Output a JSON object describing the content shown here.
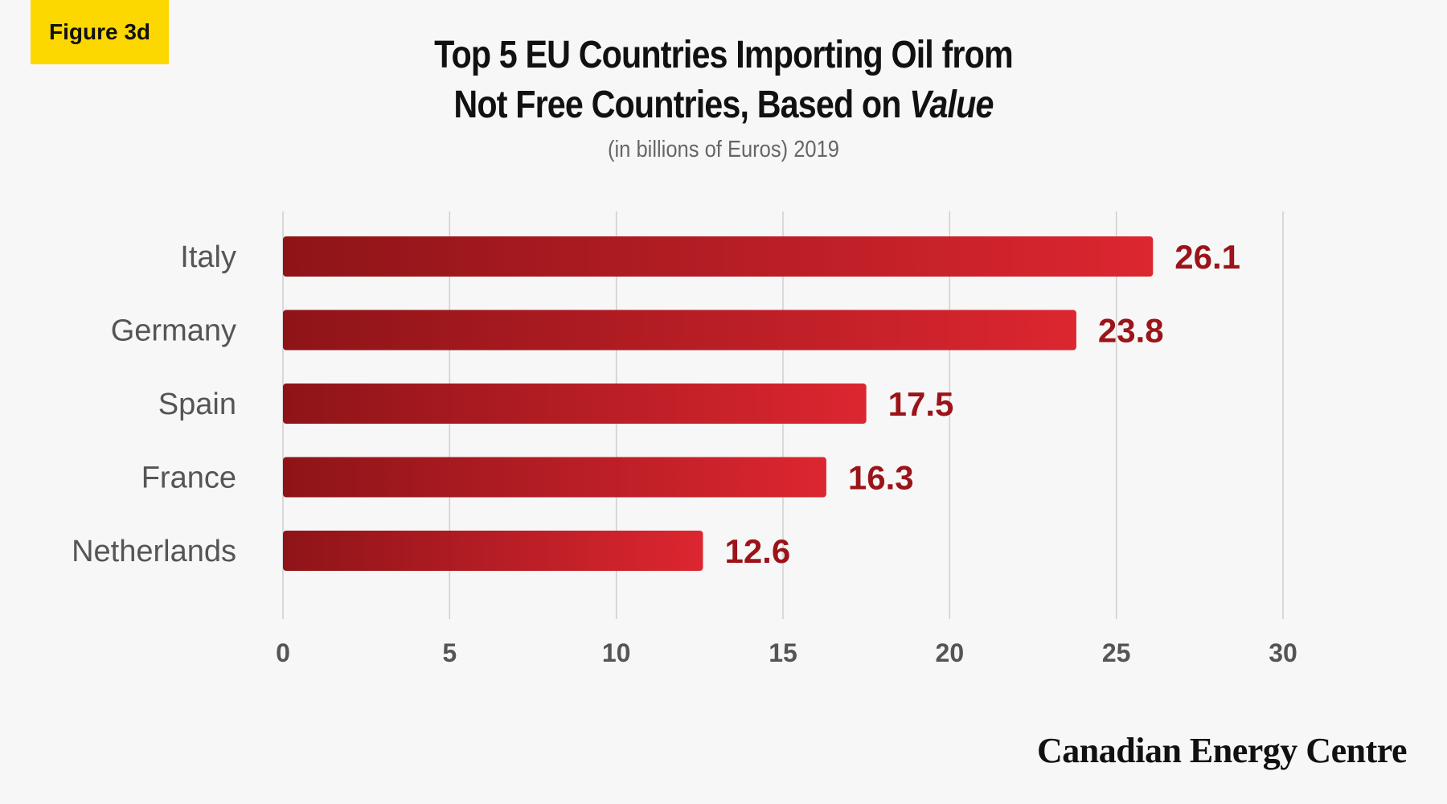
{
  "figure_label": "Figure 3d",
  "brand": "Canadian Energy Centre",
  "colors": {
    "bar_dark": "#8e1418",
    "bar_light": "#dc2630",
    "value_text": "#9b1419",
    "grid": "#cfcfcf",
    "label_badge": "#fdd700"
  },
  "chart_data": {
    "type": "bar",
    "orientation": "horizontal",
    "title_line1": "Top 5 EU Countries Importing Oil  from",
    "title_line2_prefix": "Not Free Countries, Based on ",
    "title_line2_emph": "Value",
    "subtitle": "(in billions of Euros) 2019",
    "categories": [
      "Italy",
      "Germany",
      "Spain",
      "France",
      "Netherlands"
    ],
    "values": [
      26.1,
      23.8,
      17.5,
      16.3,
      12.6
    ],
    "value_labels": [
      "26.1",
      "23.8",
      "17.5",
      "16.3",
      "12.6"
    ],
    "xticks": [
      0,
      5,
      10,
      15,
      20,
      25,
      30
    ],
    "xlim": [
      0,
      30
    ],
    "grid": true,
    "legend": "none"
  }
}
